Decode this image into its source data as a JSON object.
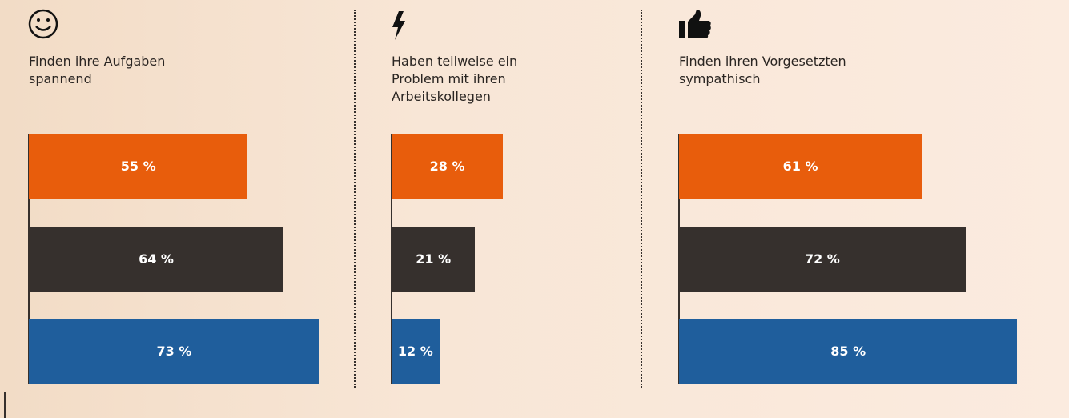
{
  "chart_data": [
    {
      "type": "bar",
      "orientation": "horizontal",
      "icon": "smiley",
      "title": [
        "Finden ihre Aufgaben",
        "spannend"
      ],
      "categories": [
        null,
        null,
        null
      ],
      "values": [
        55,
        64,
        73
      ],
      "value_labels": [
        "55 %",
        "64 %",
        "73 %"
      ],
      "colors": [
        "#e85d0c",
        "#36302d",
        "#1f5e9c"
      ],
      "xlim": [
        0,
        100
      ]
    },
    {
      "type": "bar",
      "orientation": "horizontal",
      "icon": "lightning",
      "title": [
        "Haben teilweise ein",
        "Problem mit ihren",
        "Arbeitskollegen"
      ],
      "categories": [
        null,
        null,
        null
      ],
      "values": [
        28,
        21,
        12
      ],
      "value_labels": [
        "28 %",
        "21 %",
        "12 %"
      ],
      "colors": [
        "#e85d0c",
        "#36302d",
        "#1f5e9c"
      ],
      "xlim": [
        0,
        100
      ]
    },
    {
      "type": "bar",
      "orientation": "horizontal",
      "icon": "thumb",
      "title": [
        "Finden ihren Vorgesetzten",
        "sympathisch"
      ],
      "categories": [
        null,
        null,
        null
      ],
      "values": [
        61,
        72,
        85
      ],
      "value_labels": [
        "61 %",
        "72 %",
        "85 %"
      ],
      "colors": [
        "#e85d0c",
        "#36302d",
        "#1f5e9c"
      ],
      "xlim": [
        0,
        100
      ]
    }
  ]
}
